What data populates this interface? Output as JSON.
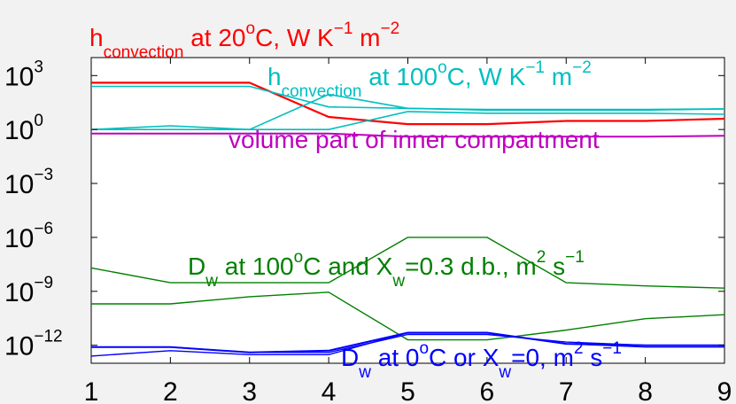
{
  "chart_data": {
    "type": "line",
    "yscale": "log",
    "xlim": [
      1,
      9
    ],
    "ylim": [
      1e-13,
      10000.0
    ],
    "x": [
      1,
      2,
      3,
      4,
      5,
      6,
      7,
      8,
      9
    ],
    "xticks": [
      "1",
      "2",
      "3",
      "4",
      "5",
      "6",
      "7",
      "8",
      "9"
    ],
    "yticks": [
      {
        "base": "10",
        "exp": "3",
        "value": 1000
      },
      {
        "base": "10",
        "exp": "0",
        "value": 1
      },
      {
        "base": "10",
        "exp": "−3",
        "value": 0.001
      },
      {
        "base": "10",
        "exp": "−6",
        "value": 1e-06
      },
      {
        "base": "10",
        "exp": "−9",
        "value": 1e-09
      },
      {
        "base": "10",
        "exp": "−12",
        "value": 1e-12
      }
    ],
    "series": [
      {
        "group": "h20",
        "color": "#ff0000",
        "width": 2.2,
        "values": [
          400,
          400,
          400,
          5,
          2,
          2,
          3,
          3,
          4
        ]
      },
      {
        "group": "h100",
        "color": "#00bfbf",
        "width": 1.6,
        "values": [
          250,
          250,
          250,
          18,
          15,
          12,
          12,
          12,
          14
        ]
      },
      {
        "group": "h100",
        "color": "#00bfbf",
        "width": 1.6,
        "values": [
          1,
          1,
          1,
          1,
          10,
          8,
          8,
          8,
          7
        ]
      },
      {
        "group": "h100",
        "color": "#00bfbf",
        "width": 1.6,
        "values": [
          1,
          1.6,
          1,
          90,
          15,
          13,
          13,
          13,
          14
        ]
      },
      {
        "group": "volume",
        "color": "#bf00bf",
        "width": 2,
        "values": [
          0.6,
          0.6,
          0.6,
          0.6,
          0.4,
          0.4,
          0.4,
          0.4,
          0.45
        ]
      },
      {
        "group": "Dw100",
        "color": "#008000",
        "width": 1.4,
        "values": [
          2e-08,
          3e-09,
          3e-09,
          3e-09,
          1e-06,
          1e-06,
          3e-09,
          2e-09,
          1.5e-09
        ]
      },
      {
        "group": "Dw100",
        "color": "#008000",
        "width": 1.4,
        "values": [
          2e-10,
          2e-10,
          5e-10,
          9e-10,
          2e-12,
          2e-12,
          7e-12,
          3e-11,
          5e-11
        ]
      },
      {
        "group": "Dw0",
        "color": "#0000ff",
        "width": 1.4,
        "values": [
          8e-13,
          8e-13,
          4e-13,
          4e-13,
          4e-12,
          4e-12,
          1.5e-12,
          1e-12,
          1e-12
        ]
      },
      {
        "group": "Dw0",
        "color": "#0000ff",
        "width": 1.4,
        "values": [
          2.5e-13,
          5e-13,
          3e-13,
          3e-13,
          5e-12,
          5e-12,
          1.2e-12,
          8e-13,
          8e-13
        ]
      },
      {
        "group": "Dw0",
        "color": "#0000ff",
        "width": 2,
        "values": [
          8e-13,
          8e-13,
          4e-13,
          5e-13,
          5e-12,
          5e-12,
          1.2e-12,
          1e-12,
          1e-12
        ]
      }
    ],
    "labels": {
      "h20": {
        "main": "h",
        "sub": "convection",
        "rest": " at 20",
        "sup": "o",
        "rest2": "C, W K",
        "sup2": "−1",
        "rest3": " m",
        "sup3": "−2",
        "color": "#ff0000"
      },
      "h100": {
        "main": "h",
        "sub": "convection",
        "rest": " at 100",
        "sup": "o",
        "rest2": "C, W K",
        "sup2": "−1",
        "rest3": " m",
        "sup3": "−2",
        "color": "#00bfbf"
      },
      "volume": {
        "text": "volume part of inner compartment",
        "color": "#bf00bf"
      },
      "Dw100": {
        "main": "D",
        "sub": "w",
        "rest": " at 100",
        "sup": "o",
        "rest2": "C and X",
        "sub2": "w",
        "rest3": "=0.3 d.b., m",
        "sup3": "2",
        "rest4": " s",
        "sup4": "−1",
        "color": "#008000"
      },
      "Dw0": {
        "main": "D",
        "sub": "w",
        "rest": " at 0",
        "sup": "o",
        "rest2": "C or X",
        "sub2": "w",
        "rest3": "=0, m",
        "sup3": "2",
        "rest4": " s",
        "sup4": "−1",
        "color": "#0000ff"
      }
    },
    "grid": false,
    "xlabel": "",
    "ylabel": "",
    "title": ""
  }
}
